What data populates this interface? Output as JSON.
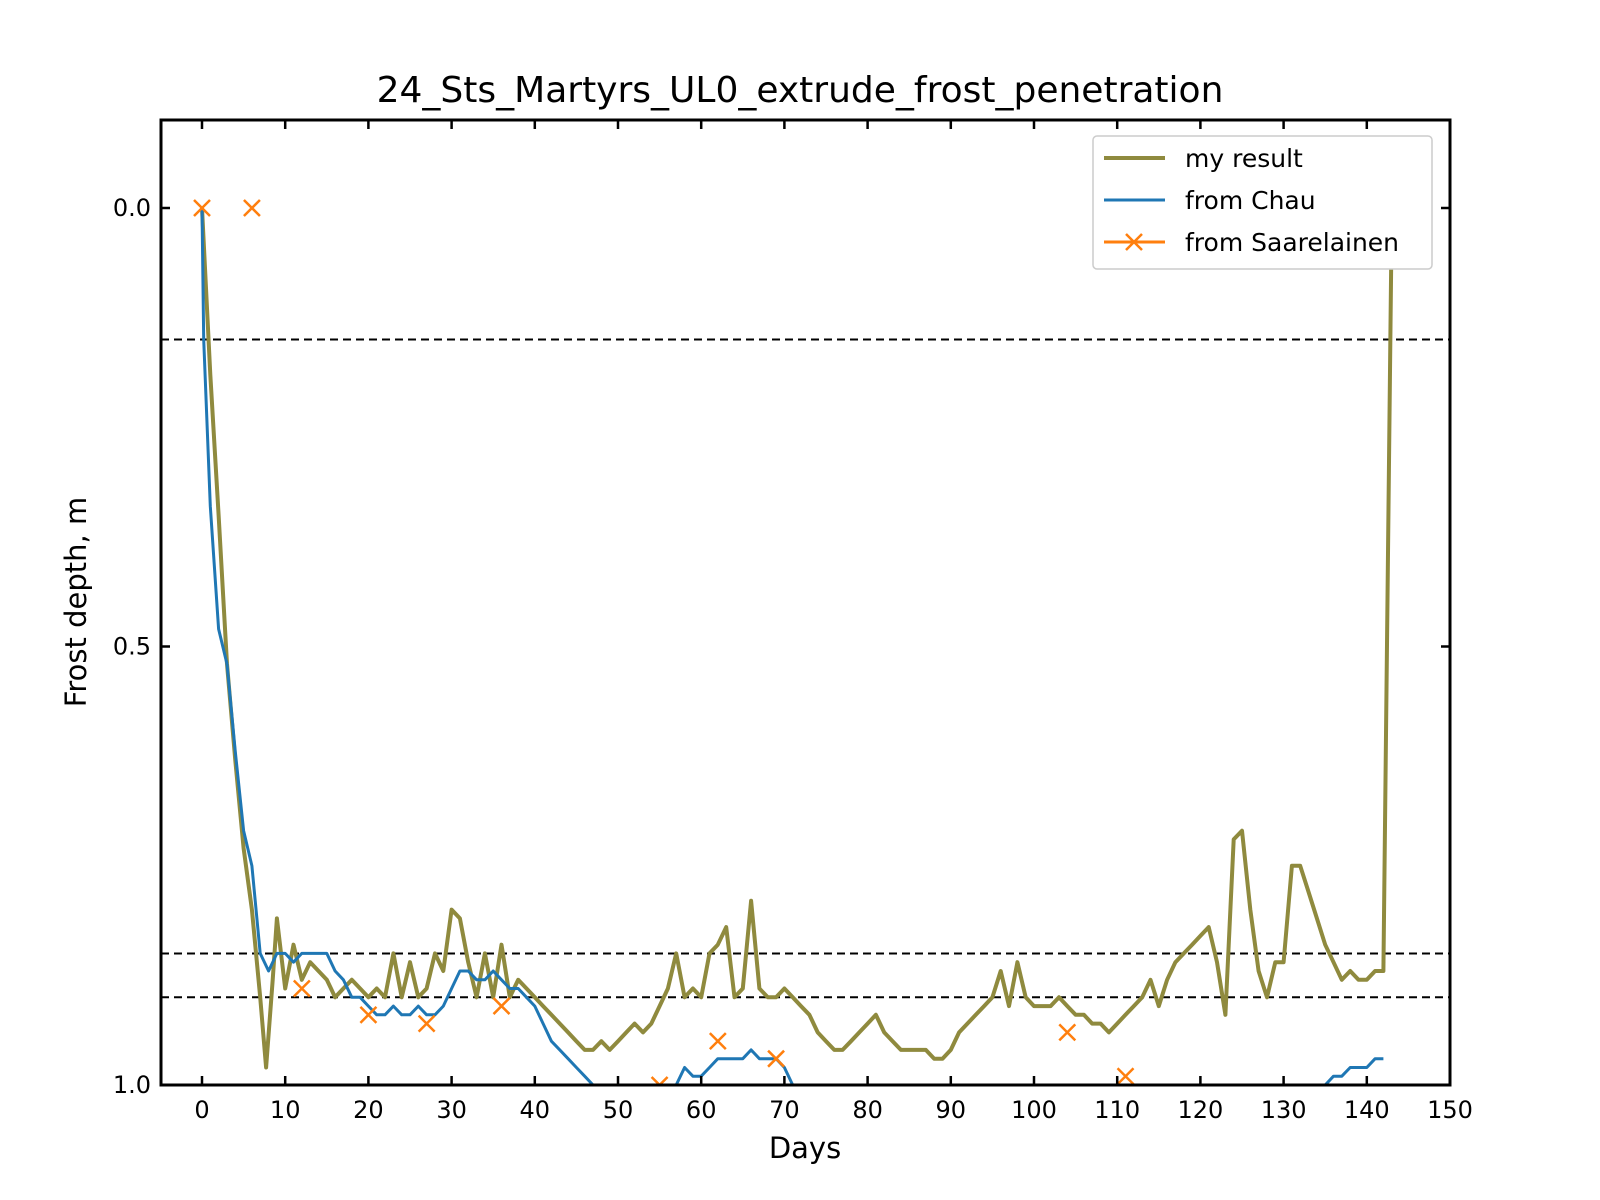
{
  "chart_data": {
    "type": "line",
    "title": "24_Sts_Martyrs_UL0_extrude_frost_penetration",
    "xlabel": "Days",
    "ylabel": "Frost depth, m",
    "xlim": [
      -5,
      150
    ],
    "ylim": [
      1.0,
      -0.1
    ],
    "x_ticks": [
      0,
      10,
      20,
      30,
      40,
      50,
      60,
      70,
      80,
      90,
      100,
      110,
      120,
      130,
      140,
      150
    ],
    "y_ticks": [
      0.0,
      0.5,
      1.0
    ],
    "y_tick_labels": [
      "0.0",
      "0.5",
      "1.0"
    ],
    "grid": false,
    "legend_position": "top-right",
    "hlines": [
      0.15,
      0.85,
      0.9
    ],
    "series": [
      {
        "name": "my result",
        "color": "#8f8a3e",
        "marker": "none",
        "x": [
          0,
          1,
          2,
          3,
          4,
          5,
          6,
          7,
          7.7,
          8.5,
          9,
          10,
          11,
          12,
          13,
          14,
          15,
          15.5,
          16,
          17,
          18,
          19,
          20,
          21,
          22,
          23,
          24,
          25,
          26,
          27,
          28,
          29,
          30,
          31,
          32,
          33,
          34,
          35,
          36,
          37,
          38,
          39,
          40,
          41,
          42,
          43,
          44,
          45,
          46,
          47,
          48,
          49,
          50,
          51,
          52,
          53,
          54,
          55,
          56,
          57,
          58,
          59,
          60,
          61,
          62,
          63,
          64,
          65,
          66,
          67,
          68,
          69,
          70,
          71,
          72,
          73,
          74,
          75,
          76,
          77,
          78,
          79,
          80,
          81,
          82,
          83,
          84,
          85,
          86,
          87,
          88,
          89,
          90,
          91,
          92,
          93,
          94,
          95,
          96,
          97,
          98,
          99,
          100,
          101,
          102,
          103,
          104,
          105,
          106,
          107,
          108,
          109,
          110,
          111,
          112,
          113,
          114,
          115,
          116,
          117,
          118,
          119,
          120,
          121,
          122,
          123,
          124,
          125,
          126,
          127,
          128,
          129,
          130,
          131,
          132,
          133,
          134,
          135,
          136,
          137,
          138,
          139,
          140,
          141,
          142,
          143
        ],
        "y": [
          0.0,
          0.19,
          0.35,
          0.52,
          0.63,
          0.73,
          0.8,
          0.9,
          0.98,
          0.88,
          0.81,
          0.89,
          0.84,
          0.88,
          0.86,
          0.87,
          0.88,
          0.89,
          0.9,
          0.89,
          0.88,
          0.89,
          0.9,
          0.89,
          0.9,
          0.85,
          0.9,
          0.86,
          0.9,
          0.89,
          0.85,
          0.87,
          0.8,
          0.81,
          0.86,
          0.9,
          0.85,
          0.9,
          0.84,
          0.9,
          0.88,
          0.89,
          0.9,
          0.91,
          0.92,
          0.93,
          0.94,
          0.95,
          0.96,
          0.96,
          0.95,
          0.96,
          0.95,
          0.94,
          0.93,
          0.94,
          0.93,
          0.91,
          0.89,
          0.85,
          0.9,
          0.89,
          0.9,
          0.85,
          0.84,
          0.82,
          0.9,
          0.89,
          0.79,
          0.89,
          0.9,
          0.9,
          0.89,
          0.9,
          0.91,
          0.92,
          0.94,
          0.95,
          0.96,
          0.96,
          0.95,
          0.94,
          0.93,
          0.92,
          0.94,
          0.95,
          0.96,
          0.96,
          0.96,
          0.96,
          0.97,
          0.97,
          0.96,
          0.94,
          0.93,
          0.92,
          0.91,
          0.9,
          0.87,
          0.91,
          0.86,
          0.9,
          0.91,
          0.91,
          0.91,
          0.9,
          0.91,
          0.92,
          0.92,
          0.93,
          0.93,
          0.94,
          0.93,
          0.92,
          0.91,
          0.9,
          0.88,
          0.91,
          0.88,
          0.86,
          0.85,
          0.84,
          0.83,
          0.82,
          0.86,
          0.92,
          0.72,
          0.71,
          0.8,
          0.87,
          0.9,
          0.86,
          0.86,
          0.75,
          0.75,
          0.78,
          0.81,
          0.84,
          0.86,
          0.88,
          0.87,
          0.88,
          0.88,
          0.87,
          0.87,
          0.0
        ]
      },
      {
        "name": "from Chau",
        "color": "#1f77b4",
        "marker": "none",
        "x": [
          0,
          0.2,
          1,
          2,
          3,
          4,
          5,
          6,
          7,
          8,
          9,
          10,
          11,
          12,
          13,
          14,
          15,
          16,
          17,
          18,
          19,
          20,
          21,
          22,
          23,
          24,
          25,
          26,
          27,
          28,
          29,
          30,
          31,
          32,
          33,
          34,
          35,
          36,
          37,
          38,
          39,
          40,
          41,
          42,
          43,
          44,
          45,
          46,
          47,
          48,
          57,
          58,
          59,
          60,
          61,
          62,
          63,
          64,
          65,
          66,
          67,
          68,
          69,
          70,
          71,
          72,
          135,
          136,
          137,
          138,
          139,
          140,
          141,
          142
        ],
        "y": [
          0.0,
          0.15,
          0.34,
          0.48,
          0.52,
          0.62,
          0.71,
          0.75,
          0.85,
          0.87,
          0.85,
          0.85,
          0.86,
          0.85,
          0.85,
          0.85,
          0.85,
          0.87,
          0.88,
          0.9,
          0.9,
          0.91,
          0.92,
          0.92,
          0.91,
          0.92,
          0.92,
          0.91,
          0.92,
          0.92,
          0.91,
          0.89,
          0.87,
          0.87,
          0.88,
          0.88,
          0.87,
          0.88,
          0.89,
          0.89,
          0.9,
          0.91,
          0.93,
          0.95,
          0.96,
          0.97,
          0.98,
          0.99,
          1.0,
          1.01,
          1.0,
          0.98,
          0.99,
          0.99,
          0.98,
          0.97,
          0.97,
          0.97,
          0.97,
          0.96,
          0.97,
          0.97,
          0.97,
          0.98,
          1.0,
          1.01,
          1.0,
          0.99,
          0.99,
          0.98,
          0.98,
          0.98,
          0.97,
          0.97
        ]
      },
      {
        "name": "from Saarelainen",
        "color": "#ff7f0e",
        "marker": "x",
        "x": [
          0,
          6,
          12,
          20,
          27,
          36,
          55,
          62,
          69,
          104,
          111
        ],
        "y": [
          0.0,
          0.0,
          0.89,
          0.92,
          0.93,
          0.91,
          1.0,
          0.95,
          0.97,
          0.94,
          0.99
        ]
      }
    ]
  }
}
